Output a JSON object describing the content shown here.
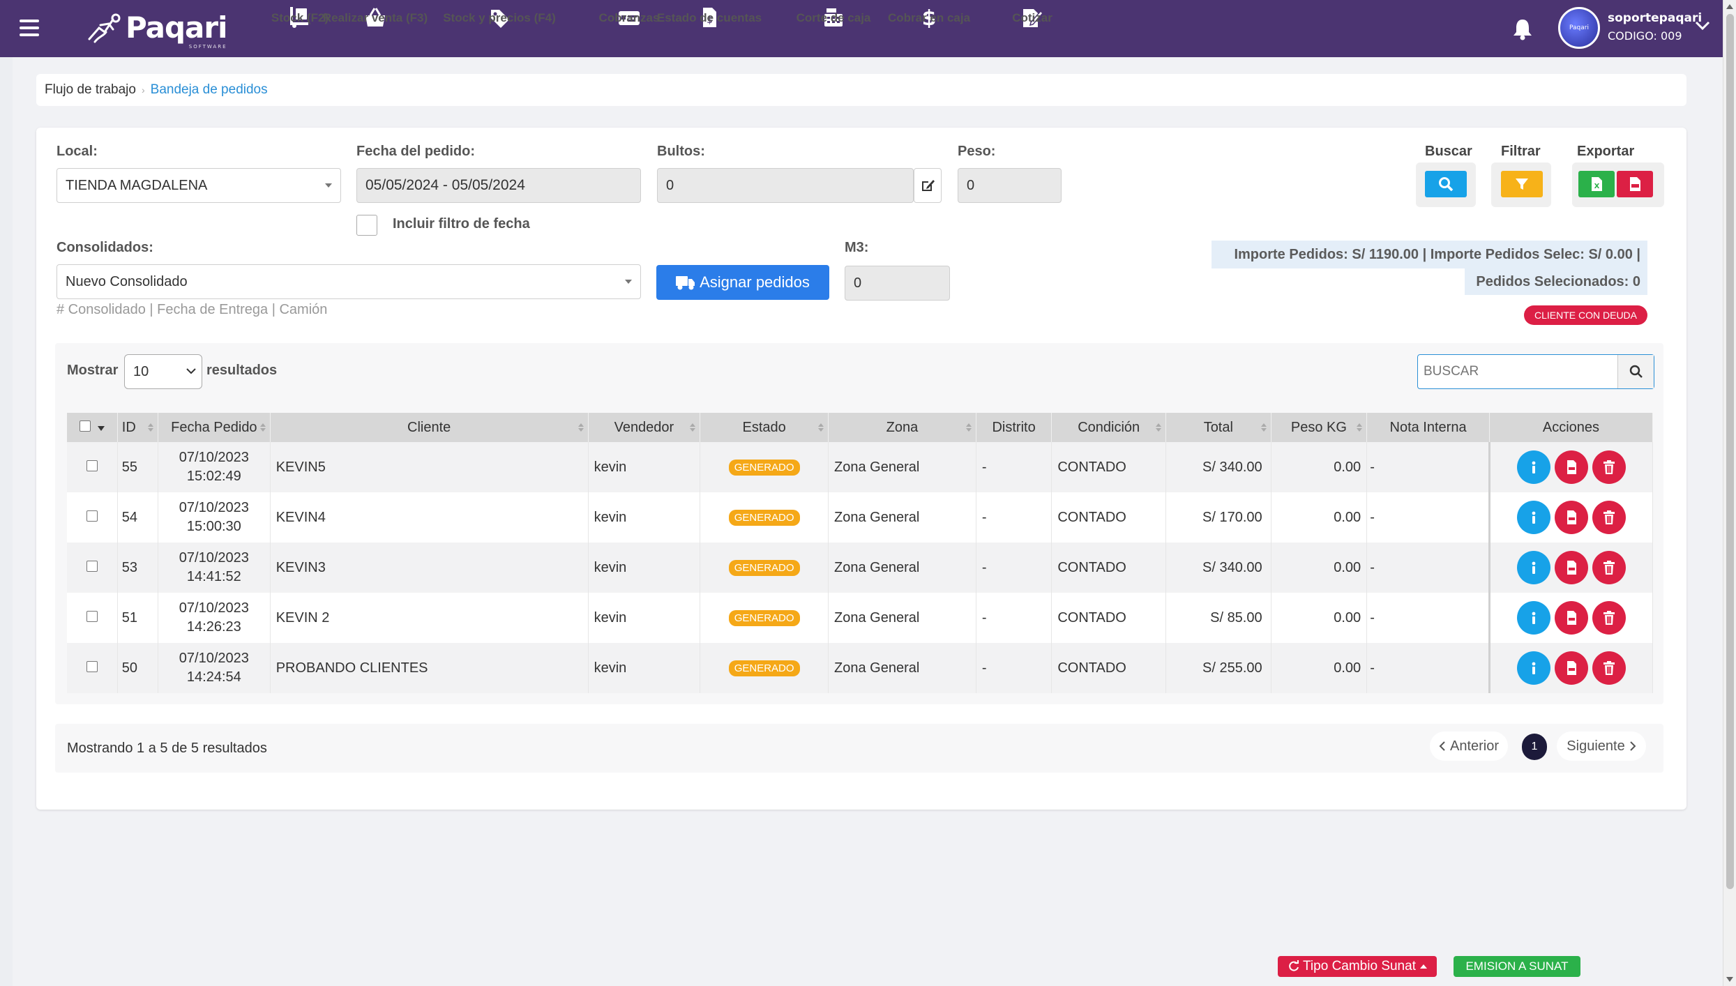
{
  "topbar": {
    "brand": "Paqari",
    "brand_sub": "SOFTWARE",
    "nav": [
      {
        "label": "Stock (F2)",
        "icon": "dolly-icon"
      },
      {
        "label": "Realizar venta (F3)",
        "icon": "basket-icon"
      },
      {
        "label": "Stock y precios (F4)",
        "icon": "tag-icon"
      },
      {
        "label": "Cobranzas",
        "icon": "money-card-icon"
      },
      {
        "label": "Estado de cuentas",
        "icon": "file-dollar-icon"
      },
      {
        "label": "Corte de caja",
        "icon": "cash-register-icon"
      },
      {
        "label": "Cobrar en caja",
        "icon": "dollar-icon"
      },
      {
        "label": "Cotizar",
        "icon": "edit-doc-icon"
      }
    ],
    "user": {
      "name": "soportepaqari",
      "code": "CODIGO: 009",
      "avatar_text": "Paqari"
    }
  },
  "breadcrumb": {
    "level1": "Flujo de trabajo",
    "level2": "Bandeja de pedidos"
  },
  "filters": {
    "local_label": "Local:",
    "local_value": "TIENDA MAGDALENA",
    "fecha_label": "Fecha del pedido:",
    "fecha_value": "05/05/2024 - 05/05/2024",
    "incluir_label": "Incluir filtro de fecha",
    "bultos_label": "Bultos:",
    "bultos_value": "0",
    "peso_label": "Peso:",
    "peso_value": "0",
    "consolidados_label": "Consolidados:",
    "consolidados_value": "Nuevo Consolidado",
    "consolidados_hint": "# Consolidado | Fecha de Entrega | Camión",
    "asignar_label": "Asignar pedidos",
    "m3_label": "M3:",
    "m3_value": "0"
  },
  "tools": {
    "buscar": "Buscar",
    "filtrar": "Filtrar",
    "exportar": "Exportar"
  },
  "totals": {
    "line1": "Importe Pedidos: S/ 1190.00  |  Importe Pedidos Selec: S/ 0.00  |",
    "line2": "Pedidos Selecionados: 0",
    "debt_badge": "CLIENTE CON DEUDA"
  },
  "table_controls": {
    "mostrar": "Mostrar",
    "page_size": "10",
    "resultados": "resultados",
    "search_placeholder": "BUSCAR"
  },
  "table": {
    "headers": [
      "ID",
      "Fecha Pedido",
      "Cliente",
      "Vendedor",
      "Estado",
      "Zona",
      "Distrito",
      "Condición",
      "Total",
      "Peso KG",
      "Nota Interna",
      "Acciones"
    ],
    "rows": [
      {
        "id": "55",
        "date": "07/10/2023",
        "time": "15:02:49",
        "cliente": "KEVIN5",
        "vendedor": "kevin",
        "estado": "GENERADO",
        "zona": "Zona General",
        "distrito": "-",
        "condicion": "CONTADO",
        "total": "S/ 340.00",
        "peso": "0.00",
        "nota": "-"
      },
      {
        "id": "54",
        "date": "07/10/2023",
        "time": "15:00:30",
        "cliente": "KEVIN4",
        "vendedor": "kevin",
        "estado": "GENERADO",
        "zona": "Zona General",
        "distrito": "-",
        "condicion": "CONTADO",
        "total": "S/ 170.00",
        "peso": "0.00",
        "nota": "-"
      },
      {
        "id": "53",
        "date": "07/10/2023",
        "time": "14:41:52",
        "cliente": "KEVIN3",
        "vendedor": "kevin",
        "estado": "GENERADO",
        "zona": "Zona General",
        "distrito": "-",
        "condicion": "CONTADO",
        "total": "S/ 340.00",
        "peso": "0.00",
        "nota": "-"
      },
      {
        "id": "51",
        "date": "07/10/2023",
        "time": "14:26:23",
        "cliente": "KEVIN 2",
        "vendedor": "kevin",
        "estado": "GENERADO",
        "zona": "Zona General",
        "distrito": "-",
        "condicion": "CONTADO",
        "total": "S/ 85.00",
        "peso": "0.00",
        "nota": "-"
      },
      {
        "id": "50",
        "date": "07/10/2023",
        "time": "14:24:54",
        "cliente": "PROBANDO CLIENTES",
        "vendedor": "kevin",
        "estado": "GENERADO",
        "zona": "Zona General",
        "distrito": "-",
        "condicion": "CONTADO",
        "total": "S/ 255.00",
        "peso": "0.00",
        "nota": "-"
      }
    ]
  },
  "pagination": {
    "showing": "Mostrando 1 a 5 de 5 resultados",
    "prev": "Anterior",
    "current": "1",
    "next": "Siguiente"
  },
  "bottom": {
    "tipo_cambio": "Tipo Cambio Sunat",
    "emision": "EMISION A SUNAT"
  },
  "colors": {
    "topbar": "#4b3471",
    "primary": "#2b7de9",
    "danger": "#dc2044",
    "warning": "#f5a817",
    "success": "#2bb14a",
    "info": "#17a2e8"
  }
}
